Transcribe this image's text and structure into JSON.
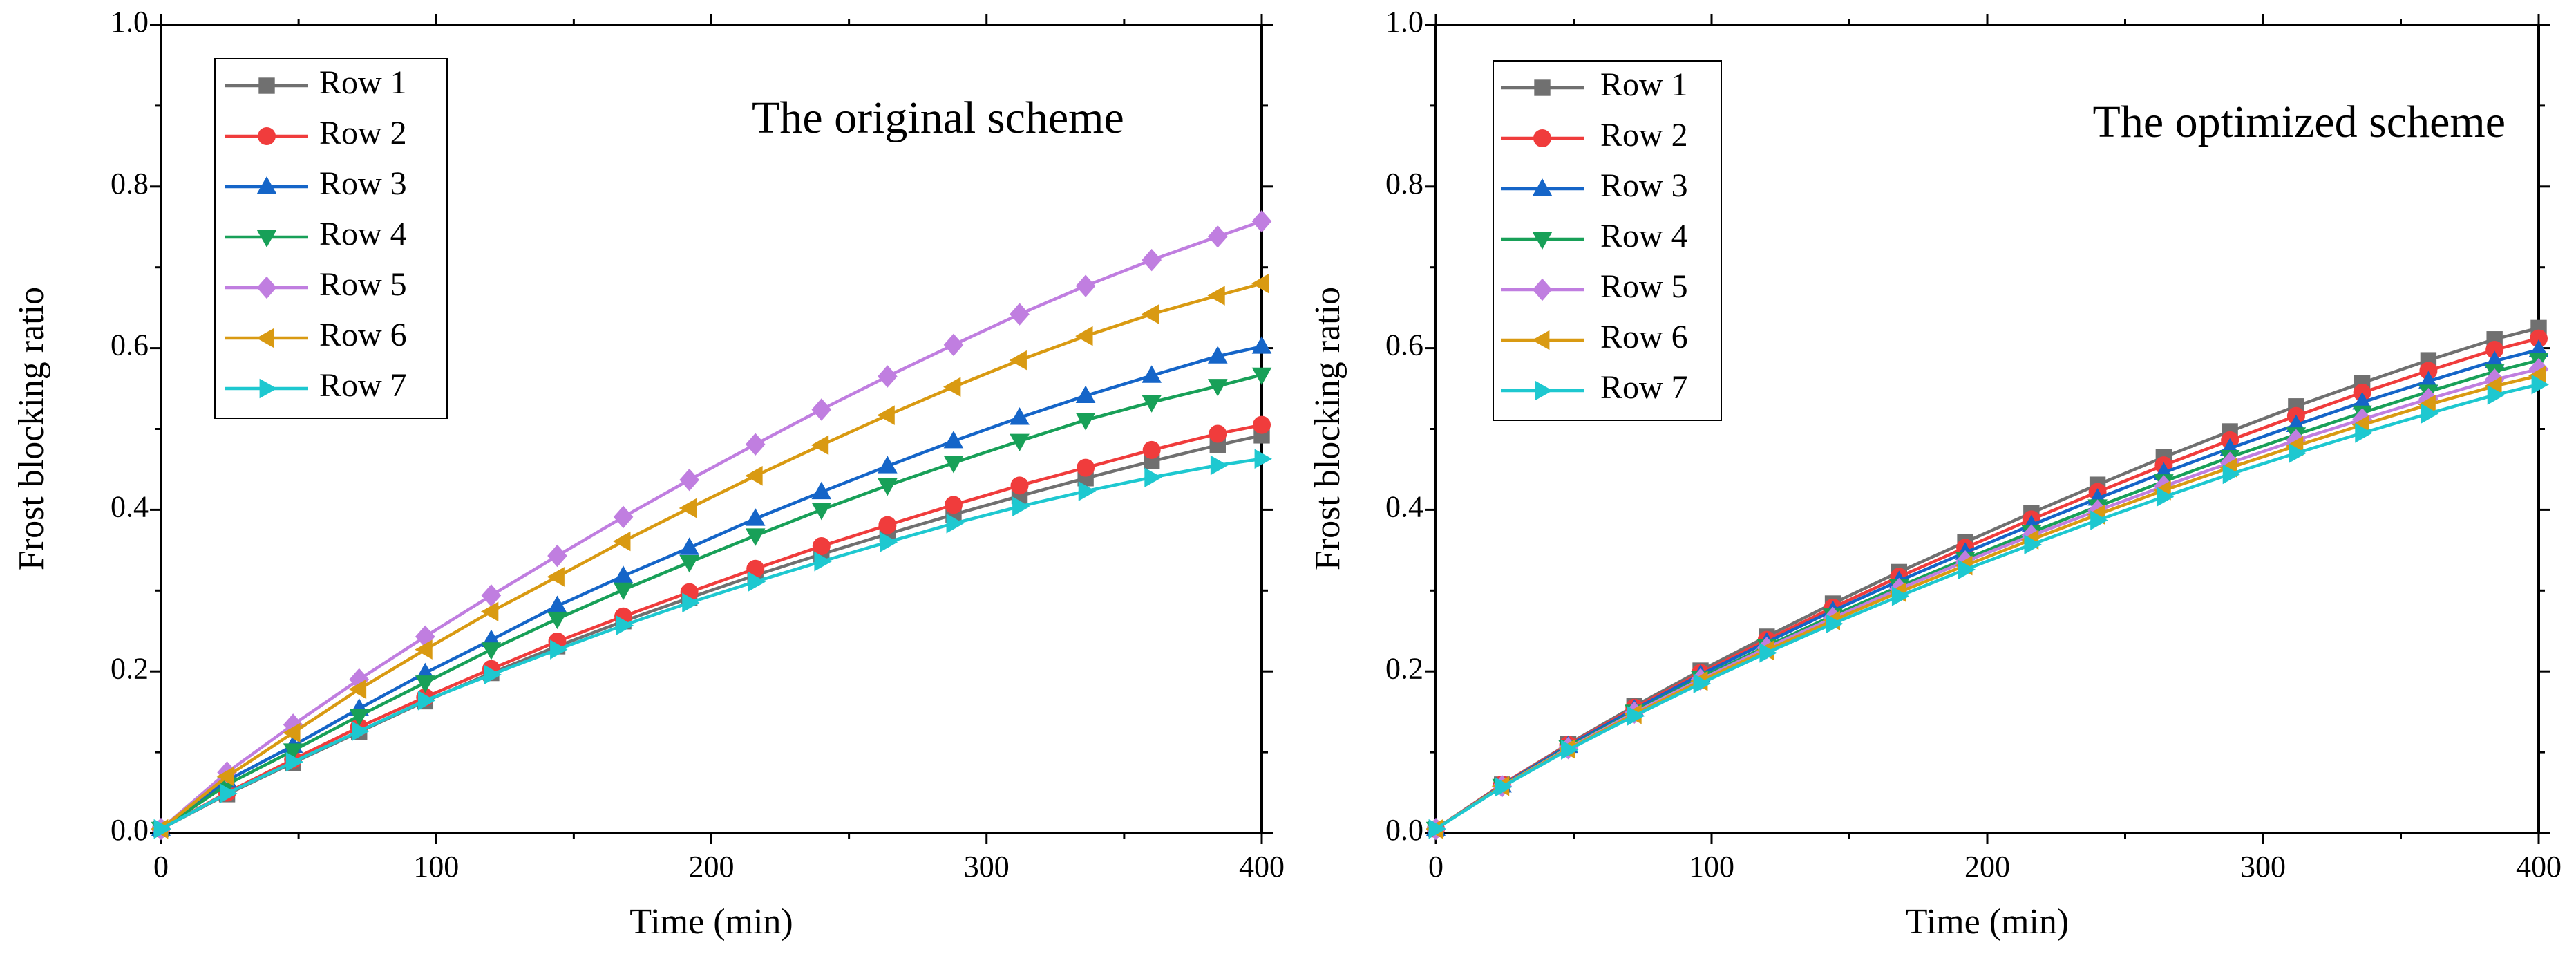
{
  "chart_data": [
    {
      "type": "line",
      "title": "The original scheme",
      "xlabel": "Time (min)",
      "ylabel": "Frost blocking ratio",
      "xlim": [
        0,
        400
      ],
      "ylim": [
        0,
        1.0
      ],
      "xticks": [
        0,
        100,
        200,
        300,
        400
      ],
      "yticks": [
        0.0,
        0.2,
        0.4,
        0.6,
        0.8,
        1.0
      ],
      "xtick_labels": [
        "0",
        "100",
        "200",
        "300",
        "400"
      ],
      "ytick_labels": [
        "0.0",
        "0.2",
        "0.4",
        "0.6",
        "0.8",
        "1.0"
      ],
      "legend_position": "top-left",
      "x": [
        0,
        24,
        48,
        72,
        96,
        120,
        144,
        168,
        192,
        216,
        240,
        264,
        288,
        312,
        336,
        360,
        384,
        400
      ],
      "series": [
        {
          "name": "Row 1",
          "color": "#707070",
          "marker": "square",
          "values": [
            0.005,
            0.048,
            0.087,
            0.125,
            0.163,
            0.198,
            0.231,
            0.262,
            0.291,
            0.319,
            0.345,
            0.37,
            0.394,
            0.417,
            0.439,
            0.46,
            0.48,
            0.492
          ]
        },
        {
          "name": "Row 2",
          "color": "#f03c3c",
          "marker": "circle",
          "values": [
            0.005,
            0.05,
            0.091,
            0.131,
            0.168,
            0.203,
            0.237,
            0.268,
            0.298,
            0.327,
            0.355,
            0.381,
            0.406,
            0.43,
            0.452,
            0.474,
            0.494,
            0.505
          ]
        },
        {
          "name": "Row 3",
          "color": "#1565c8",
          "marker": "triangle-up",
          "values": [
            0.005,
            0.065,
            0.108,
            0.154,
            0.198,
            0.239,
            0.281,
            0.318,
            0.353,
            0.389,
            0.422,
            0.454,
            0.485,
            0.514,
            0.541,
            0.566,
            0.59,
            0.602
          ]
        },
        {
          "name": "Row 4",
          "color": "#18a058",
          "marker": "triangle-down",
          "values": [
            0.005,
            0.06,
            0.102,
            0.145,
            0.186,
            0.227,
            0.265,
            0.301,
            0.335,
            0.368,
            0.4,
            0.43,
            0.458,
            0.485,
            0.511,
            0.533,
            0.553,
            0.567
          ]
        },
        {
          "name": "Row 5",
          "color": "#c07ee0",
          "marker": "diamond",
          "values": [
            0.005,
            0.075,
            0.134,
            0.19,
            0.243,
            0.294,
            0.343,
            0.391,
            0.437,
            0.481,
            0.524,
            0.565,
            0.604,
            0.642,
            0.677,
            0.709,
            0.738,
            0.757
          ]
        },
        {
          "name": "Row 6",
          "color": "#d99a12",
          "marker": "triangle-left",
          "values": [
            0.005,
            0.07,
            0.124,
            0.178,
            0.227,
            0.274,
            0.317,
            0.361,
            0.402,
            0.442,
            0.48,
            0.517,
            0.552,
            0.585,
            0.615,
            0.642,
            0.665,
            0.68
          ]
        },
        {
          "name": "Row 7",
          "color": "#1ec8d0",
          "marker": "triangle-right",
          "values": [
            0.005,
            0.049,
            0.088,
            0.126,
            0.164,
            0.196,
            0.227,
            0.257,
            0.285,
            0.311,
            0.336,
            0.36,
            0.383,
            0.404,
            0.423,
            0.44,
            0.455,
            0.463
          ]
        }
      ]
    },
    {
      "type": "line",
      "title": "The optimized scheme",
      "xlabel": "Time (min)",
      "ylabel": "Frost blocking ratio",
      "xlim": [
        0,
        400
      ],
      "ylim": [
        0,
        1.0
      ],
      "xticks": [
        0,
        100,
        200,
        300,
        400
      ],
      "yticks": [
        0.0,
        0.2,
        0.4,
        0.6,
        0.8,
        1.0
      ],
      "xtick_labels": [
        "0",
        "100",
        "200",
        "300",
        "400"
      ],
      "ytick_labels": [
        "0.0",
        "0.2",
        "0.4",
        "0.6",
        "0.8",
        "1.0"
      ],
      "legend_position": "top-left",
      "x": [
        0,
        24,
        48,
        72,
        96,
        120,
        144,
        168,
        192,
        216,
        240,
        264,
        288,
        312,
        336,
        360,
        384,
        400
      ],
      "series": [
        {
          "name": "Row 1",
          "color": "#707070",
          "marker": "square",
          "values": [
            0.005,
            0.06,
            0.11,
            0.157,
            0.201,
            0.243,
            0.284,
            0.323,
            0.36,
            0.396,
            0.431,
            0.465,
            0.497,
            0.528,
            0.557,
            0.585,
            0.611,
            0.625
          ]
        },
        {
          "name": "Row 2",
          "color": "#f03c3c",
          "marker": "circle",
          "values": [
            0.005,
            0.06,
            0.109,
            0.155,
            0.198,
            0.239,
            0.279,
            0.317,
            0.353,
            0.388,
            0.422,
            0.455,
            0.486,
            0.516,
            0.545,
            0.572,
            0.598,
            0.612
          ]
        },
        {
          "name": "Row 3",
          "color": "#1565c8",
          "marker": "triangle-up",
          "values": [
            0.005,
            0.059,
            0.108,
            0.153,
            0.196,
            0.236,
            0.275,
            0.312,
            0.347,
            0.381,
            0.414,
            0.446,
            0.476,
            0.505,
            0.533,
            0.559,
            0.584,
            0.598
          ]
        },
        {
          "name": "Row 4",
          "color": "#18a058",
          "marker": "triangle-down",
          "values": [
            0.005,
            0.058,
            0.106,
            0.15,
            0.192,
            0.231,
            0.269,
            0.305,
            0.339,
            0.372,
            0.404,
            0.435,
            0.465,
            0.493,
            0.52,
            0.546,
            0.571,
            0.585
          ]
        },
        {
          "name": "Row 5",
          "color": "#c07ee0",
          "marker": "diamond",
          "values": [
            0.005,
            0.058,
            0.105,
            0.149,
            0.19,
            0.229,
            0.266,
            0.302,
            0.336,
            0.368,
            0.399,
            0.429,
            0.458,
            0.486,
            0.512,
            0.537,
            0.561,
            0.574
          ]
        },
        {
          "name": "Row 6",
          "color": "#d99a12",
          "marker": "triangle-left",
          "values": [
            0.005,
            0.058,
            0.104,
            0.147,
            0.188,
            0.226,
            0.263,
            0.298,
            0.331,
            0.363,
            0.394,
            0.424,
            0.452,
            0.479,
            0.505,
            0.53,
            0.553,
            0.566
          ]
        },
        {
          "name": "Row 7",
          "color": "#1ec8d0",
          "marker": "triangle-right",
          "values": [
            0.005,
            0.057,
            0.103,
            0.145,
            0.185,
            0.223,
            0.259,
            0.293,
            0.326,
            0.357,
            0.387,
            0.416,
            0.444,
            0.47,
            0.495,
            0.519,
            0.542,
            0.555
          ]
        }
      ]
    }
  ]
}
